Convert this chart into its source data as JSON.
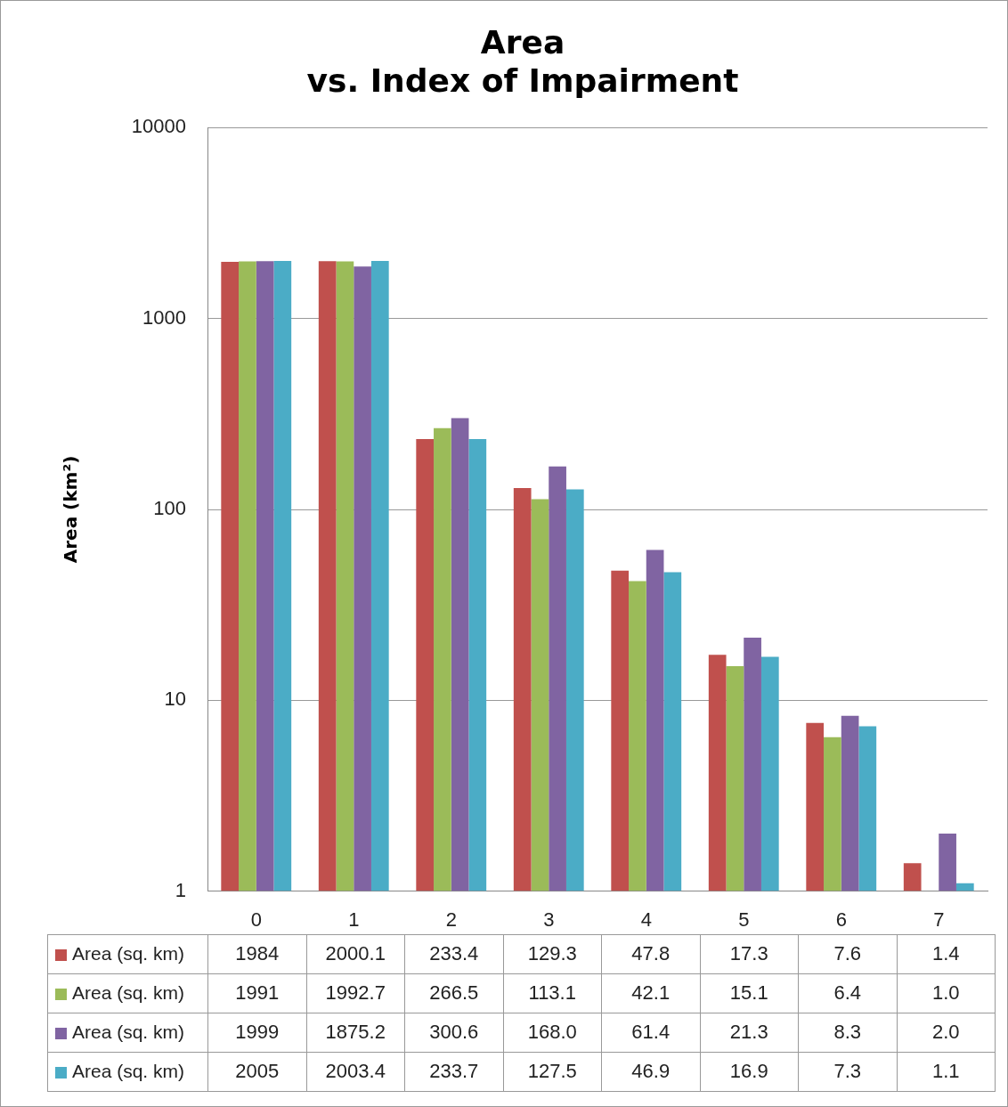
{
  "chart_data": {
    "type": "bar",
    "title": "Area",
    "subtitle": "vs. Index of Impairment",
    "ylabel": "Area (km²)",
    "categories": [
      "0",
      "1",
      "2",
      "3",
      "4",
      "5",
      "6",
      "7"
    ],
    "series": [
      {
        "name": "Area (sq. km)",
        "color": "#c0504d",
        "values": [
          1984,
          2000.1,
          233.4,
          129.3,
          47.8,
          17.3,
          7.6,
          1.4
        ],
        "value_labels": [
          "1984",
          "2000.1",
          "233.4",
          "129.3",
          "47.8",
          "17.3",
          "7.6",
          "1.4"
        ]
      },
      {
        "name": "Area (sq. km)",
        "color": "#9bbb59",
        "values": [
          1991,
          1992.7,
          266.5,
          113.1,
          42.1,
          15.1,
          6.4,
          1.0
        ],
        "value_labels": [
          "1991",
          "1992.7",
          "266.5",
          "113.1",
          "42.1",
          "15.1",
          "6.4",
          "1.0"
        ]
      },
      {
        "name": "Area (sq. km)",
        "color": "#8064a2",
        "values": [
          1999,
          1875.2,
          300.6,
          168.0,
          61.4,
          21.3,
          8.3,
          2.0
        ],
        "value_labels": [
          "1999",
          "1875.2",
          "300.6",
          "168.0",
          "61.4",
          "21.3",
          "8.3",
          "2.0"
        ]
      },
      {
        "name": "Area (sq. km)",
        "color": "#4bacc6",
        "values": [
          2005,
          2003.4,
          233.7,
          127.5,
          46.9,
          16.9,
          7.3,
          1.1
        ],
        "value_labels": [
          "2005",
          "2003.4",
          "233.7",
          "127.5",
          "46.9",
          "16.9",
          "7.3",
          "1.1"
        ]
      }
    ],
    "log": true,
    "ylim": [
      1,
      10000
    ],
    "yticks": [
      1,
      10,
      100,
      1000,
      10000
    ],
    "grid": "y",
    "legend": "bottom"
  }
}
